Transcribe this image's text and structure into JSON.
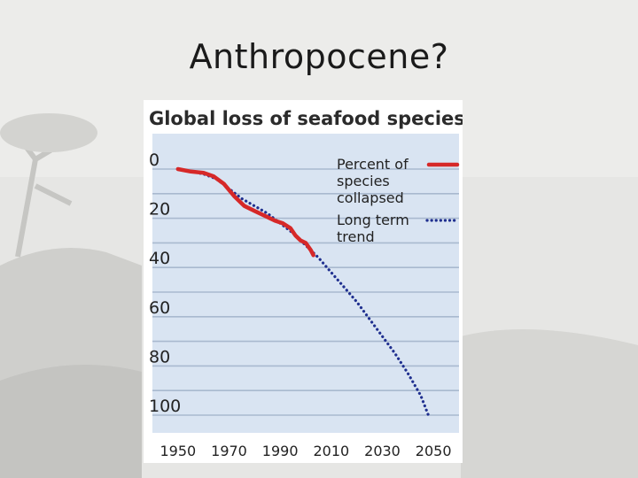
{
  "slide": {
    "title": "Anthropocene?"
  },
  "colors": {
    "collapsed": "#d62828",
    "trend": "#1f2f8f",
    "plot_bg": "#d9e4f2",
    "grid": "#ffffff"
  },
  "chart_data": {
    "type": "line",
    "title": "Global loss of seafood species",
    "xlabel": "",
    "ylabel": "",
    "xlim": [
      1940,
      2060
    ],
    "ylim": [
      0,
      100
    ],
    "y_inverted": true,
    "yticks": [
      "0",
      "20",
      "40",
      "60",
      "80",
      "100"
    ],
    "xticks": [
      "1950",
      "1970",
      "1990",
      "2010",
      "2030",
      "2050"
    ],
    "grid": true,
    "legend_placement": "top-right",
    "series": [
      {
        "name": "Percent of species collapsed",
        "style": "solid",
        "x": [
          1950,
          1955,
          1960,
          1964,
          1968,
          1972,
          1976,
          1980,
          1984,
          1988,
          1991,
          1994,
          1996,
          1998,
          2000,
          2002,
          2003
        ],
        "y": [
          0,
          1,
          1.5,
          3,
          6,
          11,
          15,
          17,
          19,
          21,
          22,
          24,
          27,
          29,
          30,
          33,
          35
        ]
      },
      {
        "name": "Long term trend",
        "style": "dotted",
        "x": [
          1950,
          1960,
          1965,
          1970,
          1975,
          1980,
          1985,
          1990,
          1995,
          2000,
          2005,
          2010,
          2015,
          2020,
          2025,
          2030,
          2035,
          2040,
          2045,
          2048
        ],
        "y": [
          0,
          2,
          4,
          8,
          12,
          15,
          18,
          22,
          26,
          31,
          36,
          42,
          48,
          54,
          61,
          68,
          75,
          83,
          92,
          100
        ]
      }
    ],
    "legend": [
      {
        "label_lines": [
          "Percent of",
          "species",
          "collapsed"
        ]
      },
      {
        "label_lines": [
          "Long term",
          "trend"
        ]
      }
    ]
  }
}
